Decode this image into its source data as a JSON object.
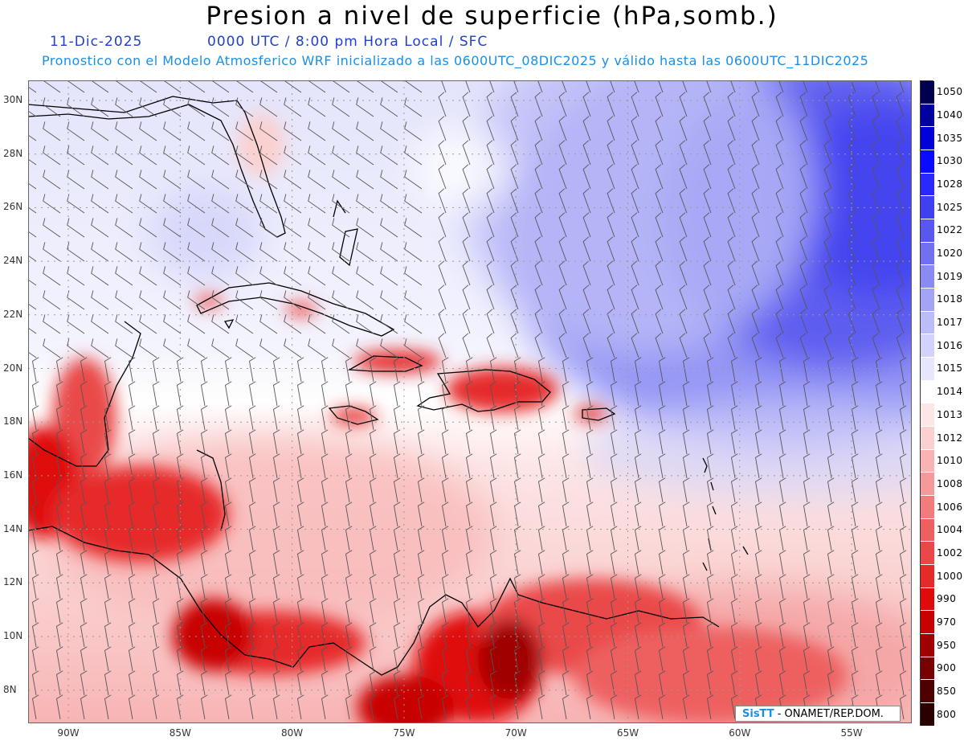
{
  "header": {
    "title": "Presion a nivel de superficie (hPa,somb.)",
    "date": "11-Dic-2025",
    "time_info": "0000 UTC / 8:00 pm Hora Local / SFC",
    "model_info": "Pronostico con el Modelo Atmosferico WRF inicializado a las 0600UTC_08DIC2025 y válido hasta las  0600UTC_11DIC2025"
  },
  "map": {
    "lat_labels": [
      "30N",
      "28N",
      "26N",
      "24N",
      "22N",
      "20N",
      "18N",
      "16N",
      "14N",
      "12N",
      "10N",
      "8N"
    ],
    "lon_labels": [
      "90W",
      "85W",
      "80W",
      "75W",
      "70W",
      "65W",
      "60W",
      "55W"
    ]
  },
  "colorbar": {
    "levels": [
      "1050",
      "1040",
      "1035",
      "1030",
      "1028",
      "1025",
      "1022",
      "1020",
      "1019",
      "1018",
      "1017",
      "1016",
      "1015",
      "1014",
      "1013",
      "1012",
      "1010",
      "1008",
      "1006",
      "1004",
      "1002",
      "1000",
      "990",
      "970",
      "950",
      "900",
      "850",
      "800"
    ],
    "colors": [
      "#000050",
      "#0000a0",
      "#0000d8",
      "#0a0aff",
      "#2828ff",
      "#4040f0",
      "#5858f0",
      "#7070f0",
      "#8a8af4",
      "#a4a4f6",
      "#bcbcf8",
      "#d2d2fa",
      "#e6e6fc",
      "#ffffff",
      "#fde6e6",
      "#fad0d0",
      "#f8b4b4",
      "#f49a9a",
      "#f27c7c",
      "#ee6060",
      "#ea4848",
      "#e62a2a",
      "#e00a0a",
      "#c80000",
      "#a00000",
      "#780000",
      "#500000",
      "#2a0000"
    ]
  },
  "logo": {
    "brand": "SisTT",
    "org": "- ONAMET/REP.DOM."
  }
}
